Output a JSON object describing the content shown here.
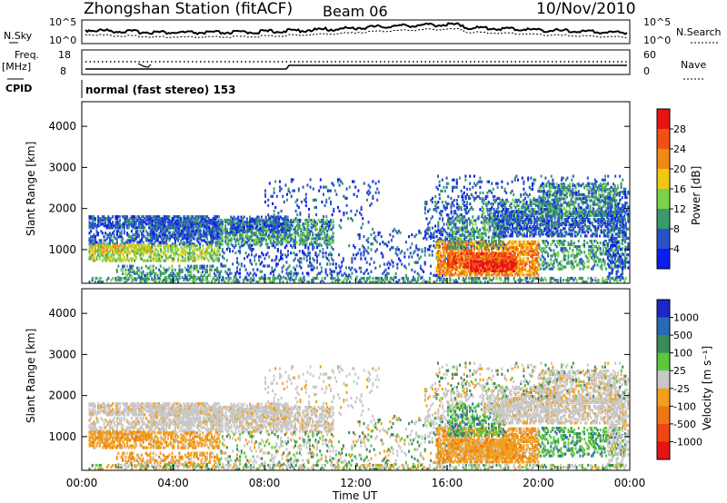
{
  "header": {
    "station": "Zhongshan Station (fitACF)",
    "beam": "Beam 06",
    "date": "10/Nov/2010"
  },
  "strip": {
    "nsky_label": "N.Sky",
    "nsky_top": "10^5",
    "nsky_bottom": "10^0",
    "nsearch_label": "N.Search",
    "nsearch_top": "10^5",
    "nsearch_bottom": "10^0",
    "freq_label_1": "Freq.",
    "freq_label_2": "[MHz]",
    "freq_top": "18",
    "freq_bottom": "8",
    "nave_label": "Nave",
    "nave_top": "60",
    "nave_bottom": "0",
    "cpid_label": "CPID",
    "cpid_value": "normal (fast stereo) 153"
  },
  "chart_data": [
    {
      "type": "heatmap",
      "title": "",
      "xlabel": "Time UT",
      "ylabel": "Slant Range [km]",
      "x_ticks": [
        "00:00",
        "04:00",
        "08:00",
        "12:00",
        "16:00",
        "20:00",
        "00:00"
      ],
      "xlim_hours": [
        0,
        24
      ],
      "ylim": [
        180,
        4600
      ],
      "y_ticks": [
        1000,
        2000,
        3000,
        4000
      ],
      "colorbar": {
        "label": "Power [dB]",
        "ticks": [
          "4",
          "8",
          "12",
          "16",
          "20",
          "24",
          "28"
        ],
        "colors": [
          "#0a1ef0",
          "#2a52c8",
          "#3a9a6e",
          "#7ad24a",
          "#f0c814",
          "#f08a14",
          "#f05014",
          "#e61414"
        ]
      }
    },
    {
      "type": "heatmap",
      "title": "",
      "xlabel": "Time UT",
      "ylabel": "Slant Range [km]",
      "x_ticks": [
        "00:00",
        "04:00",
        "08:00",
        "12:00",
        "16:00",
        "20:00",
        "00:00"
      ],
      "xlim_hours": [
        0,
        24
      ],
      "ylim": [
        180,
        4600
      ],
      "y_ticks": [
        1000,
        2000,
        3000,
        4000
      ],
      "colorbar": {
        "label": "Velocity [m s⁻¹]",
        "ticks": [
          "1000",
          "500",
          "100",
          "25",
          "-25",
          "-100",
          "-500",
          "-1000"
        ],
        "colors": [
          "#1a28c8",
          "#2a6ab4",
          "#3a8a5a",
          "#5ac83c",
          "#c8c8c8",
          "#f0a01e",
          "#f07814",
          "#f04614",
          "#e61414"
        ]
      }
    }
  ],
  "colors": {
    "background": "#ffffff",
    "ground_scatter": "#c8c8c8"
  }
}
